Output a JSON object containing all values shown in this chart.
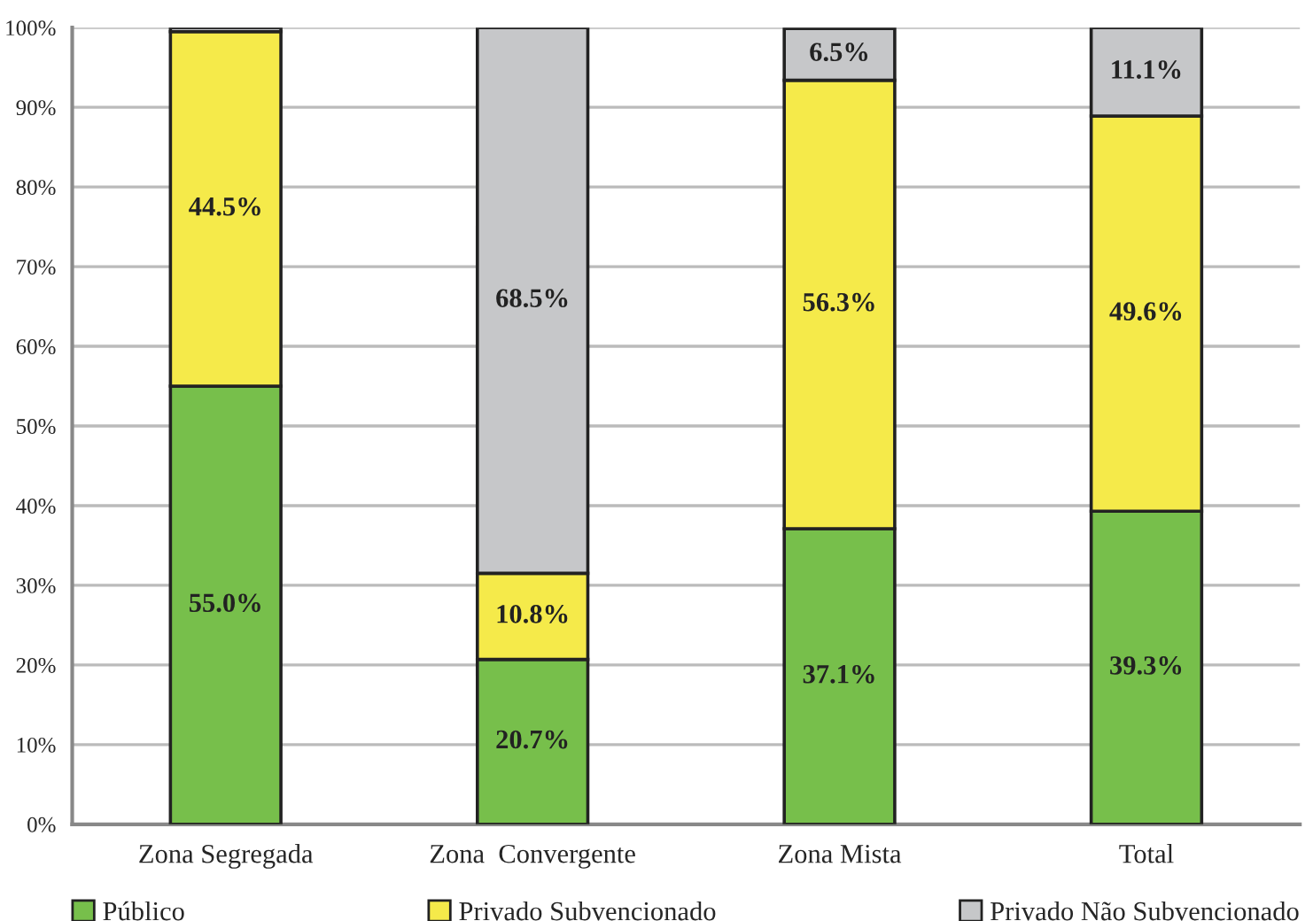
{
  "chart_data": {
    "type": "bar",
    "stacked": true,
    "categories": [
      "Zona Segregada",
      "Zona  Convergente",
      "Zona Mista",
      "Total"
    ],
    "series": [
      {
        "name": "Público",
        "color": "#77bf4b",
        "values": [
          55.0,
          20.7,
          37.1,
          39.3
        ],
        "value_labels": [
          "55.0%",
          "20.7%",
          "37.1%",
          "39.3%"
        ]
      },
      {
        "name": "Privado Subvencionado",
        "color": "#f5ea4a",
        "values": [
          44.5,
          10.8,
          56.3,
          49.6
        ],
        "value_labels": [
          "44.5%",
          "10.8%",
          "56.3%",
          "49.6%"
        ]
      },
      {
        "name": "Privado Não Subvencionado",
        "color": "#c6c7c9",
        "values": [
          0.5,
          68.5,
          6.5,
          11.1
        ],
        "value_labels": [
          null,
          "68.5%",
          "6.5%",
          "11.1%"
        ]
      }
    ],
    "ylim": [
      0,
      100
    ],
    "yticks": [
      {
        "value": 0,
        "label": "0%"
      },
      {
        "value": 10,
        "label": "10%"
      },
      {
        "value": 20,
        "label": "20%"
      },
      {
        "value": 30,
        "label": "30%"
      },
      {
        "value": 40,
        "label": "40%"
      },
      {
        "value": 50,
        "label": "50%"
      },
      {
        "value": 60,
        "label": "60%"
      },
      {
        "value": 70,
        "label": "70%"
      },
      {
        "value": 80,
        "label": "80%"
      },
      {
        "value": 90,
        "label": "90%"
      },
      {
        "value": 100,
        "label": "100%"
      }
    ],
    "grid": "y",
    "legend": "bottom"
  }
}
